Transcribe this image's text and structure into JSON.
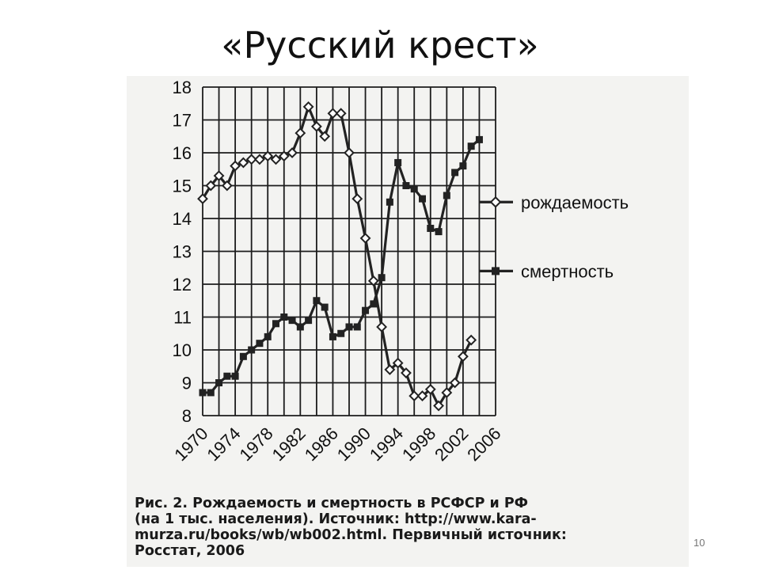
{
  "slide": {
    "title": "«Русский крест»",
    "page_number": "10"
  },
  "caption": {
    "lines": [
      "Рис. 2. Рождаемость и смертность в РСФСР и РФ",
      "(на 1 тыс. населения). Источник: http://www.kara-",
      "murza.ru/books/wb/wb002.html. Первичный источник:",
      "Росстат, 2006"
    ]
  },
  "chart_data": {
    "type": "line",
    "title": "",
    "xlabel": "",
    "ylabel": "",
    "x": [
      1970,
      1971,
      1972,
      1973,
      1974,
      1975,
      1976,
      1977,
      1978,
      1979,
      1980,
      1981,
      1982,
      1983,
      1984,
      1985,
      1986,
      1987,
      1988,
      1989,
      1990,
      1991,
      1992,
      1993,
      1994,
      1995,
      1996,
      1997,
      1998,
      1999,
      2000,
      2001,
      2002,
      2003,
      2004,
      2005,
      2006
    ],
    "xlim": [
      1970,
      2006
    ],
    "ylim": [
      8,
      18
    ],
    "x_tick_labels": [
      "1970",
      "1974",
      "1978",
      "1982",
      "1986",
      "1990",
      "1994",
      "1998",
      "2002",
      "2006"
    ],
    "y_tick_labels": [
      "8",
      "9",
      "10",
      "11",
      "12",
      "13",
      "14",
      "15",
      "16",
      "17",
      "18"
    ],
    "grid": true,
    "legend_position": "right",
    "series": [
      {
        "name": "рождаемость",
        "marker": "diamond",
        "values": [
          14.6,
          15.0,
          15.3,
          15.0,
          15.6,
          15.7,
          15.8,
          15.8,
          15.9,
          15.8,
          15.9,
          16.0,
          16.6,
          17.4,
          16.8,
          16.5,
          17.2,
          17.2,
          16.0,
          14.6,
          13.4,
          12.1,
          10.7,
          9.4,
          9.6,
          9.3,
          8.6,
          8.6,
          8.8,
          8.3,
          8.7,
          9.0,
          9.8,
          10.3,
          null,
          null,
          null
        ]
      },
      {
        "name": "смертность",
        "marker": "square",
        "values": [
          8.7,
          8.7,
          9.0,
          9.2,
          9.2,
          9.8,
          10.0,
          10.2,
          10.4,
          10.8,
          11.0,
          10.9,
          10.7,
          10.9,
          11.5,
          11.3,
          10.4,
          10.5,
          10.7,
          10.7,
          11.2,
          11.4,
          12.2,
          14.5,
          15.7,
          15.0,
          14.9,
          14.6,
          13.7,
          13.6,
          14.7,
          15.4,
          15.6,
          16.2,
          16.4,
          null,
          null
        ]
      }
    ],
    "colors": {
      "line": "#222222",
      "grid": "#1c1c1c",
      "background": "#f3f3f1"
    }
  }
}
